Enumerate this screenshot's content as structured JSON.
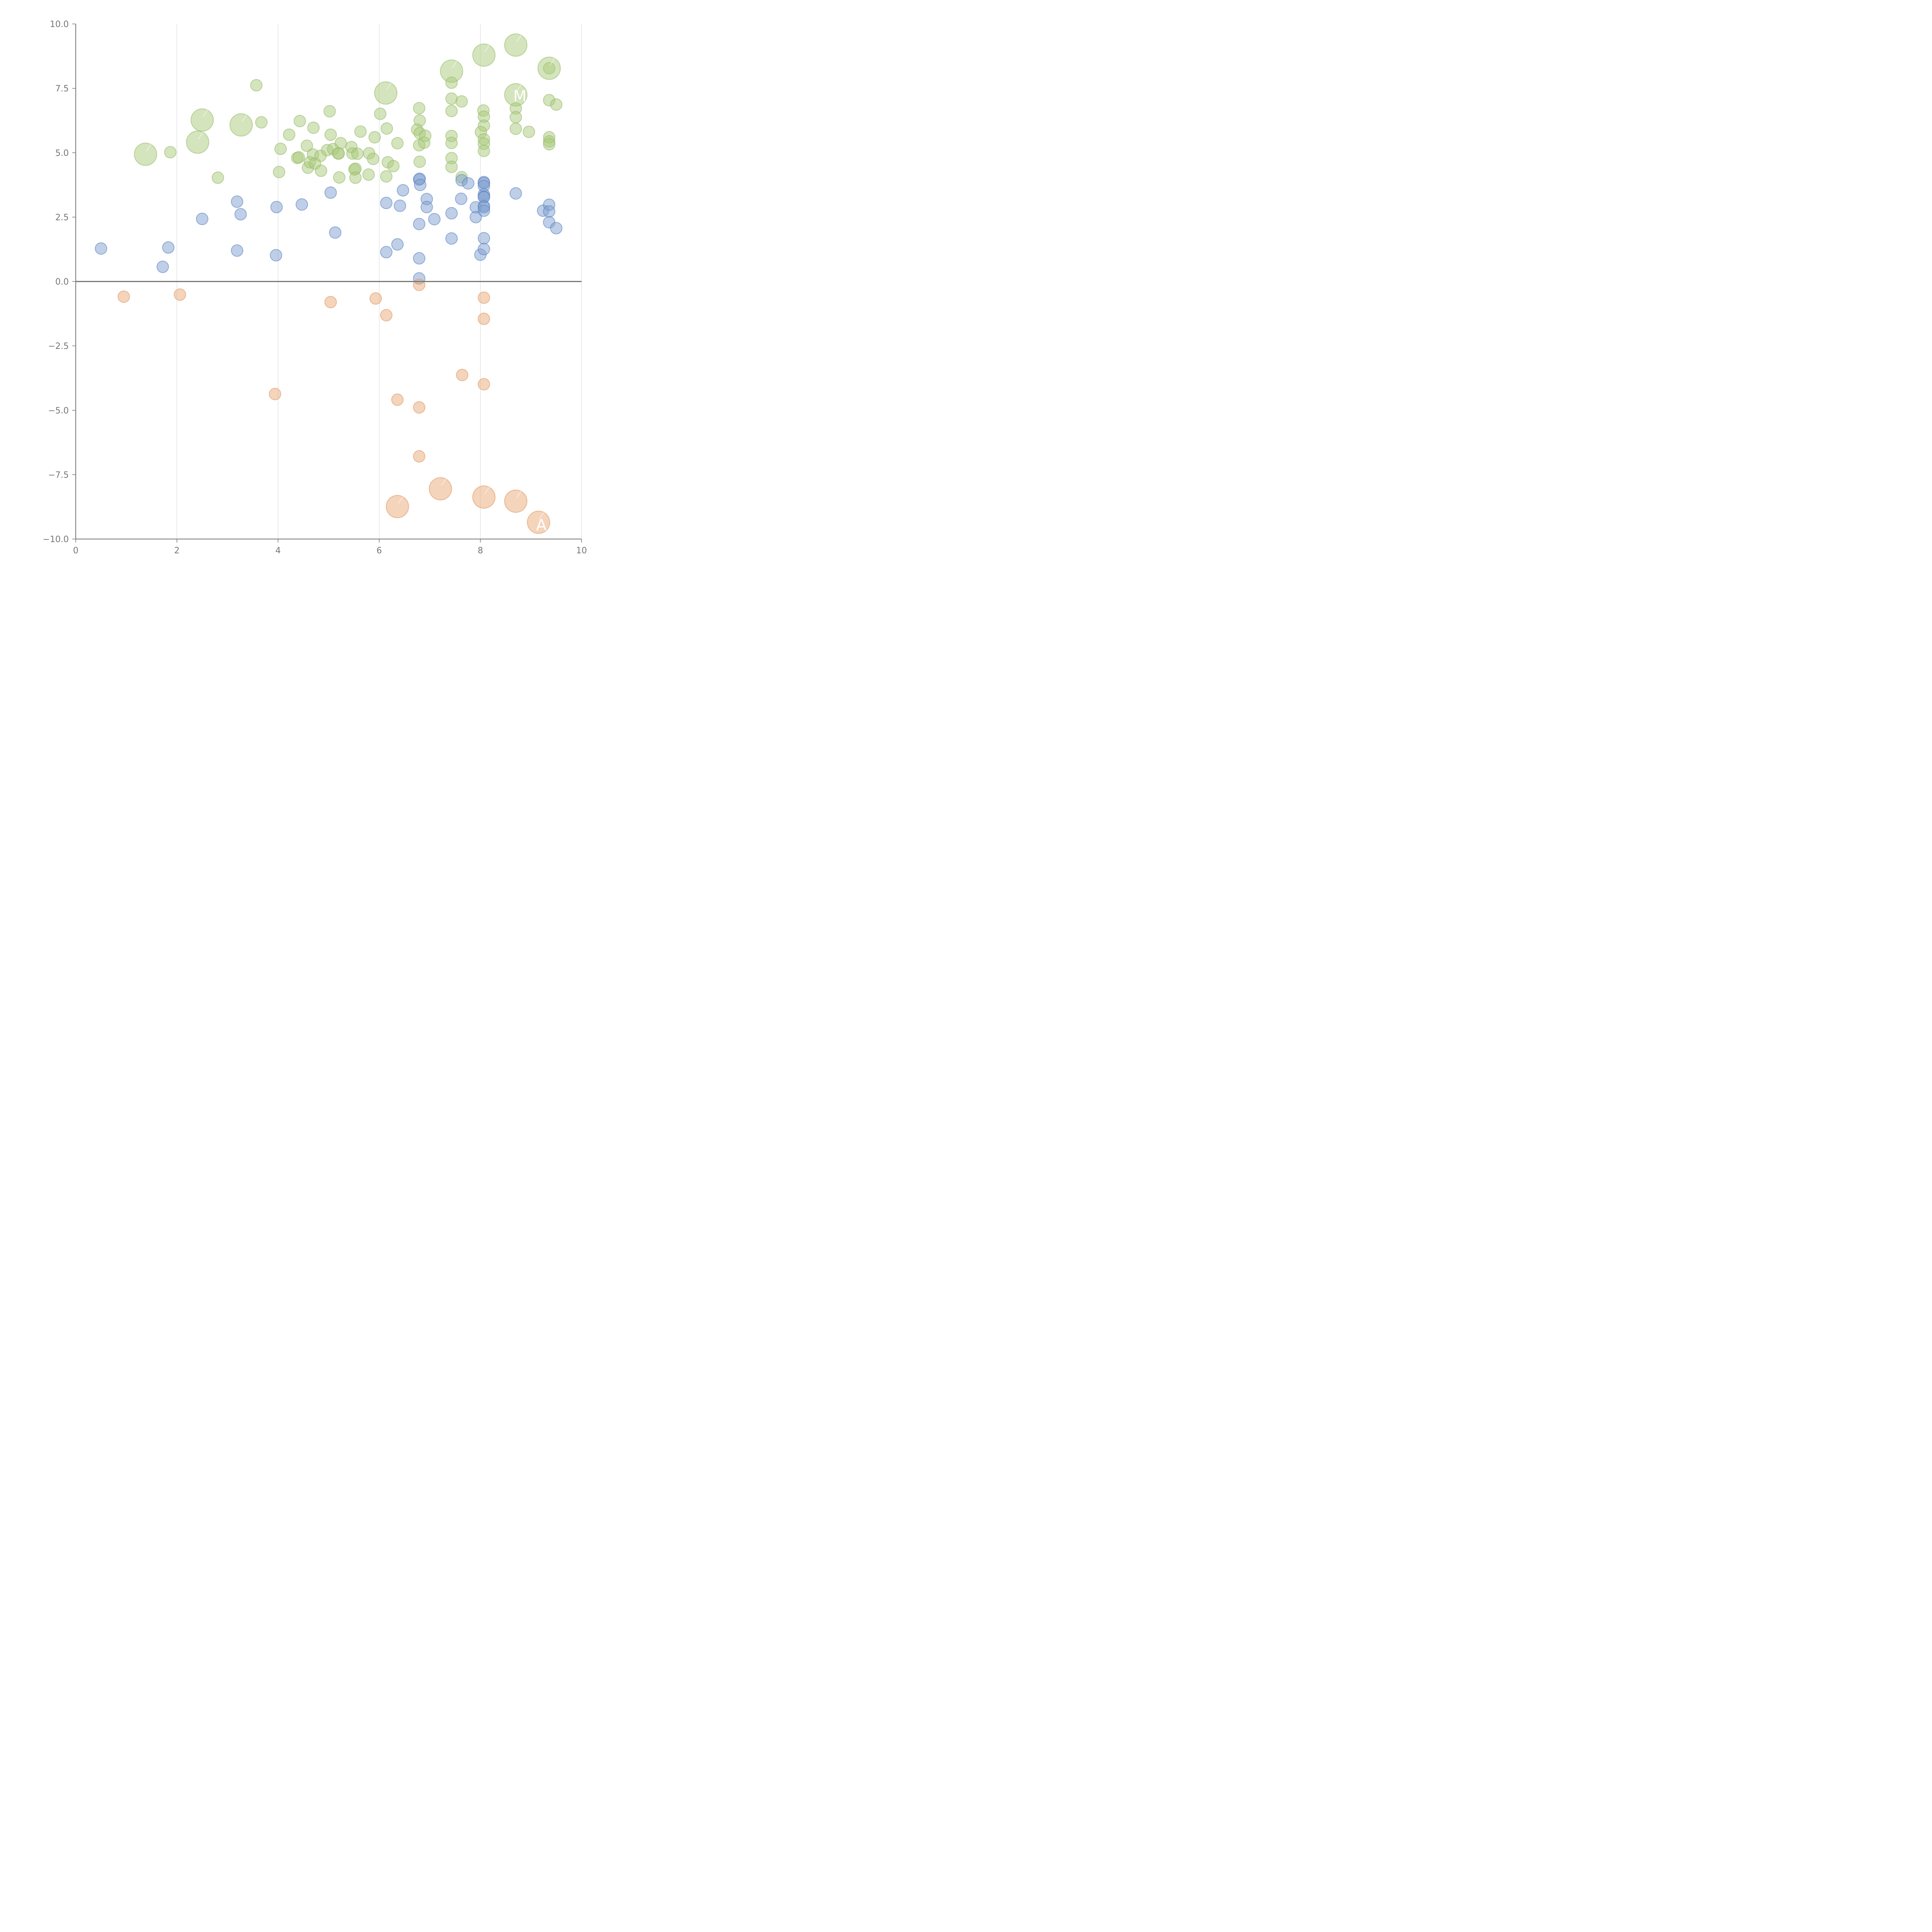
{
  "chart_data": {
    "type": "scatter",
    "title": "",
    "xlabel": "",
    "ylabel": "",
    "xlim": [
      0,
      10
    ],
    "ylim": [
      -10,
      10
    ],
    "x_ticks": [
      0,
      2,
      4,
      6,
      8,
      10
    ],
    "x_tick_labels": [
      "0",
      "2",
      "4",
      "6",
      "8",
      "10"
    ],
    "y_ticks": [
      10,
      7.5,
      5,
      2.5,
      0,
      -2.5,
      -5,
      -7.5,
      -10
    ],
    "y_tick_labels": [
      "10.0",
      "7.5",
      "5.0",
      "2.5",
      "0.0",
      "−2.5",
      "−5.0",
      "−7.5",
      "−10.0"
    ],
    "grid": "vertical",
    "zero_line": true,
    "colors": {
      "green_fill": "#a9c97a",
      "green_stroke": "#96b96a",
      "blue_fill": "#7f9fd0",
      "blue_stroke": "#5a82c0",
      "orange_fill": "#eaaa78",
      "orange_stroke": "#e09660"
    },
    "groups": [
      {
        "color": "green",
        "points": [
          [
            3.57,
            7.62
          ],
          [
            3.67,
            6.18
          ],
          [
            1.87,
            5.02
          ],
          [
            2.81,
            4.03
          ],
          [
            4.05,
            5.15
          ],
          [
            4.02,
            4.25
          ],
          [
            4.22,
            5.7
          ],
          [
            4.43,
            6.23
          ],
          [
            4.38,
            4.8
          ],
          [
            4.41,
            4.82
          ],
          [
            4.57,
            5.27
          ],
          [
            4.59,
            4.42
          ],
          [
            4.63,
            4.63
          ],
          [
            4.69,
            4.93
          ],
          [
            4.7,
            5.97
          ],
          [
            4.73,
            4.58
          ],
          [
            4.85,
            4.3
          ],
          [
            4.84,
            4.88
          ],
          [
            4.97,
            5.1
          ],
          [
            5.02,
            6.61
          ],
          [
            5.04,
            5.7
          ],
          [
            5.09,
            5.14
          ],
          [
            5.19,
            4.97
          ],
          [
            5.21,
            4.04
          ],
          [
            5.24,
            5.37
          ],
          [
            5.45,
            5.22
          ],
          [
            5.47,
            4.97
          ],
          [
            5.51,
            4.35
          ],
          [
            5.53,
            4.38
          ],
          [
            5.53,
            4.03
          ],
          [
            5.57,
            4.96
          ],
          [
            5.63,
            5.82
          ],
          [
            5.79,
            4.15
          ],
          [
            5.8,
            4.98
          ],
          [
            5.91,
            5.6
          ],
          [
            5.88,
            4.76
          ],
          [
            6.02,
            6.51
          ],
          [
            6.14,
            4.08
          ],
          [
            6.15,
            5.94
          ],
          [
            6.17,
            4.63
          ],
          [
            6.28,
            4.48
          ],
          [
            6.36,
            5.37
          ],
          [
            6.75,
            5.9
          ],
          [
            6.79,
            6.73
          ],
          [
            6.8,
            6.25
          ],
          [
            6.8,
            5.76
          ],
          [
            6.79,
            5.29
          ],
          [
            6.8,
            4.65
          ],
          [
            6.89,
            5.39
          ],
          [
            6.91,
            5.66
          ],
          [
            7.43,
            7.72
          ],
          [
            7.43,
            7.1
          ],
          [
            7.43,
            6.62
          ],
          [
            7.43,
            5.65
          ],
          [
            7.43,
            5.38
          ],
          [
            7.43,
            4.79
          ],
          [
            7.43,
            4.45
          ],
          [
            7.63,
            6.99
          ],
          [
            7.63,
            4.05
          ],
          [
            8.06,
            6.64
          ],
          [
            8.07,
            6.4
          ],
          [
            8.07,
            6.05
          ],
          [
            8.01,
            5.8
          ],
          [
            8.07,
            5.52
          ],
          [
            8.07,
            5.35
          ],
          [
            8.07,
            5.07
          ],
          [
            8.7,
            6.72
          ],
          [
            8.7,
            6.38
          ],
          [
            8.7,
            5.93
          ],
          [
            8.96,
            5.81
          ],
          [
            9.36,
            8.28
          ],
          [
            9.36,
            7.04
          ],
          [
            9.36,
            5.6
          ],
          [
            9.36,
            5.44
          ],
          [
            9.36,
            5.33
          ],
          [
            9.5,
            6.87
          ],
          [
            5.2,
            4.97
          ]
        ],
        "large_points": [
          [
            1.38,
            4.94
          ],
          [
            2.41,
            5.41
          ],
          [
            2.5,
            6.27
          ],
          [
            3.27,
            6.08
          ],
          [
            6.13,
            7.32
          ],
          [
            7.43,
            8.17
          ],
          [
            8.07,
            8.79
          ],
          [
            8.7,
            9.18
          ],
          [
            8.7,
            7.25
          ],
          [
            9.36,
            8.28
          ]
        ]
      },
      {
        "color": "blue",
        "points": [
          [
            0.5,
            1.28
          ],
          [
            1.72,
            0.57
          ],
          [
            1.83,
            1.32
          ],
          [
            2.5,
            2.43
          ],
          [
            3.19,
            3.1
          ],
          [
            3.26,
            2.61
          ],
          [
            3.19,
            1.2
          ],
          [
            3.97,
            2.89
          ],
          [
            3.96,
            1.02
          ],
          [
            4.47,
            2.99
          ],
          [
            5.04,
            3.45
          ],
          [
            5.13,
            1.9
          ],
          [
            6.14,
            3.05
          ],
          [
            6.14,
            1.14
          ],
          [
            6.36,
            1.44
          ],
          [
            6.41,
            2.94
          ],
          [
            6.47,
            3.54
          ],
          [
            6.79,
            3.96
          ],
          [
            6.8,
            3.99
          ],
          [
            6.81,
            3.75
          ],
          [
            6.79,
            2.23
          ],
          [
            6.79,
            0.9
          ],
          [
            6.79,
            0.12
          ],
          [
            6.94,
            3.2
          ],
          [
            6.94,
            2.89
          ],
          [
            7.09,
            2.42
          ],
          [
            7.43,
            2.65
          ],
          [
            7.43,
            1.67
          ],
          [
            7.63,
            3.93
          ],
          [
            7.62,
            3.21
          ],
          [
            7.76,
            3.81
          ],
          [
            7.91,
            2.88
          ],
          [
            7.91,
            2.5
          ],
          [
            8.0,
            1.04
          ],
          [
            8.07,
            3.86
          ],
          [
            8.07,
            3.82
          ],
          [
            8.07,
            3.71
          ],
          [
            8.07,
            3.38
          ],
          [
            8.07,
            3.3
          ],
          [
            8.07,
            3.27
          ],
          [
            8.07,
            2.93
          ],
          [
            8.07,
            2.88
          ],
          [
            8.07,
            2.75
          ],
          [
            8.07,
            1.68
          ],
          [
            8.07,
            1.26
          ],
          [
            8.7,
            3.42
          ],
          [
            9.24,
            2.75
          ],
          [
            9.36,
            2.98
          ],
          [
            9.36,
            2.72
          ],
          [
            9.36,
            2.3
          ],
          [
            9.5,
            2.07
          ]
        ]
      },
      {
        "color": "orange",
        "points": [
          [
            0.95,
            -0.59
          ],
          [
            2.06,
            -0.51
          ],
          [
            3.94,
            -4.37
          ],
          [
            5.04,
            -0.8
          ],
          [
            5.93,
            -0.66
          ],
          [
            6.14,
            -1.31
          ],
          [
            6.36,
            -4.59
          ],
          [
            6.79,
            -0.13
          ],
          [
            6.79,
            -4.89
          ],
          [
            6.79,
            -6.79
          ],
          [
            7.64,
            -3.63
          ],
          [
            8.07,
            -0.63
          ],
          [
            8.07,
            -1.45
          ],
          [
            8.07,
            -3.99
          ]
        ],
        "large_points": [
          [
            6.36,
            -8.74
          ],
          [
            7.21,
            -8.05
          ],
          [
            8.07,
            -8.37
          ],
          [
            8.7,
            -8.53
          ],
          [
            9.15,
            -9.35
          ]
        ]
      }
    ],
    "annotations": [
      {
        "text": "M",
        "x": 8.65,
        "y": 7.2
      },
      {
        "text": "A",
        "x": 9.1,
        "y": -9.45
      }
    ]
  }
}
